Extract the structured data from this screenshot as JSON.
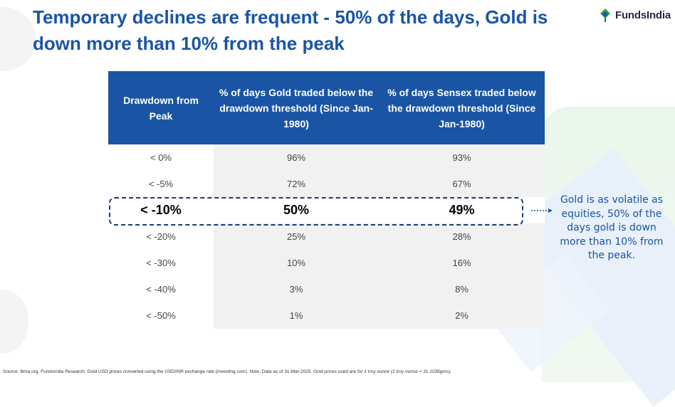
{
  "title": "Temporary declines are frequent - 50% of the days, Gold is down more than 10% from the peak",
  "brand": {
    "name": "FundsIndia",
    "accent": "#1a55a5",
    "logo_green": "#27a745"
  },
  "table": {
    "headers": [
      "Drawdown from Peak",
      "% of days Gold traded below the drawdown threshold (Since Jan-1980)",
      "% of days Sensex traded below the drawdown threshold (Since Jan-1980)"
    ],
    "rows": [
      {
        "threshold": "< 0%",
        "gold": "96%",
        "sensex": "93%"
      },
      {
        "threshold": "< -5%",
        "gold": "72%",
        "sensex": "67%"
      },
      {
        "threshold": "< -10%",
        "gold": "50%",
        "sensex": "49%"
      },
      {
        "threshold": "< -20%",
        "gold": "25%",
        "sensex": "28%"
      },
      {
        "threshold": "< -30%",
        "gold": "10%",
        "sensex": "16%"
      },
      {
        "threshold": "< -40%",
        "gold": "3%",
        "sensex": "8%"
      },
      {
        "threshold": "< -50%",
        "gold": "1%",
        "sensex": "2%"
      }
    ],
    "highlighted_row_index": 2
  },
  "callout": "Gold is as volatile as equities, 50% of the days gold is down more than 10% from the peak.",
  "source": {
    "text": "Source: lbma.org, FundsIndia Research. Gold USD prices converted using the USD/INR exchange rate (investing.com). Note: Data as of 31-Mar-2025.",
    "italic": "Gold prices used are for 1 troy ounce (1 troy ounce = 31.1035gms)."
  }
}
